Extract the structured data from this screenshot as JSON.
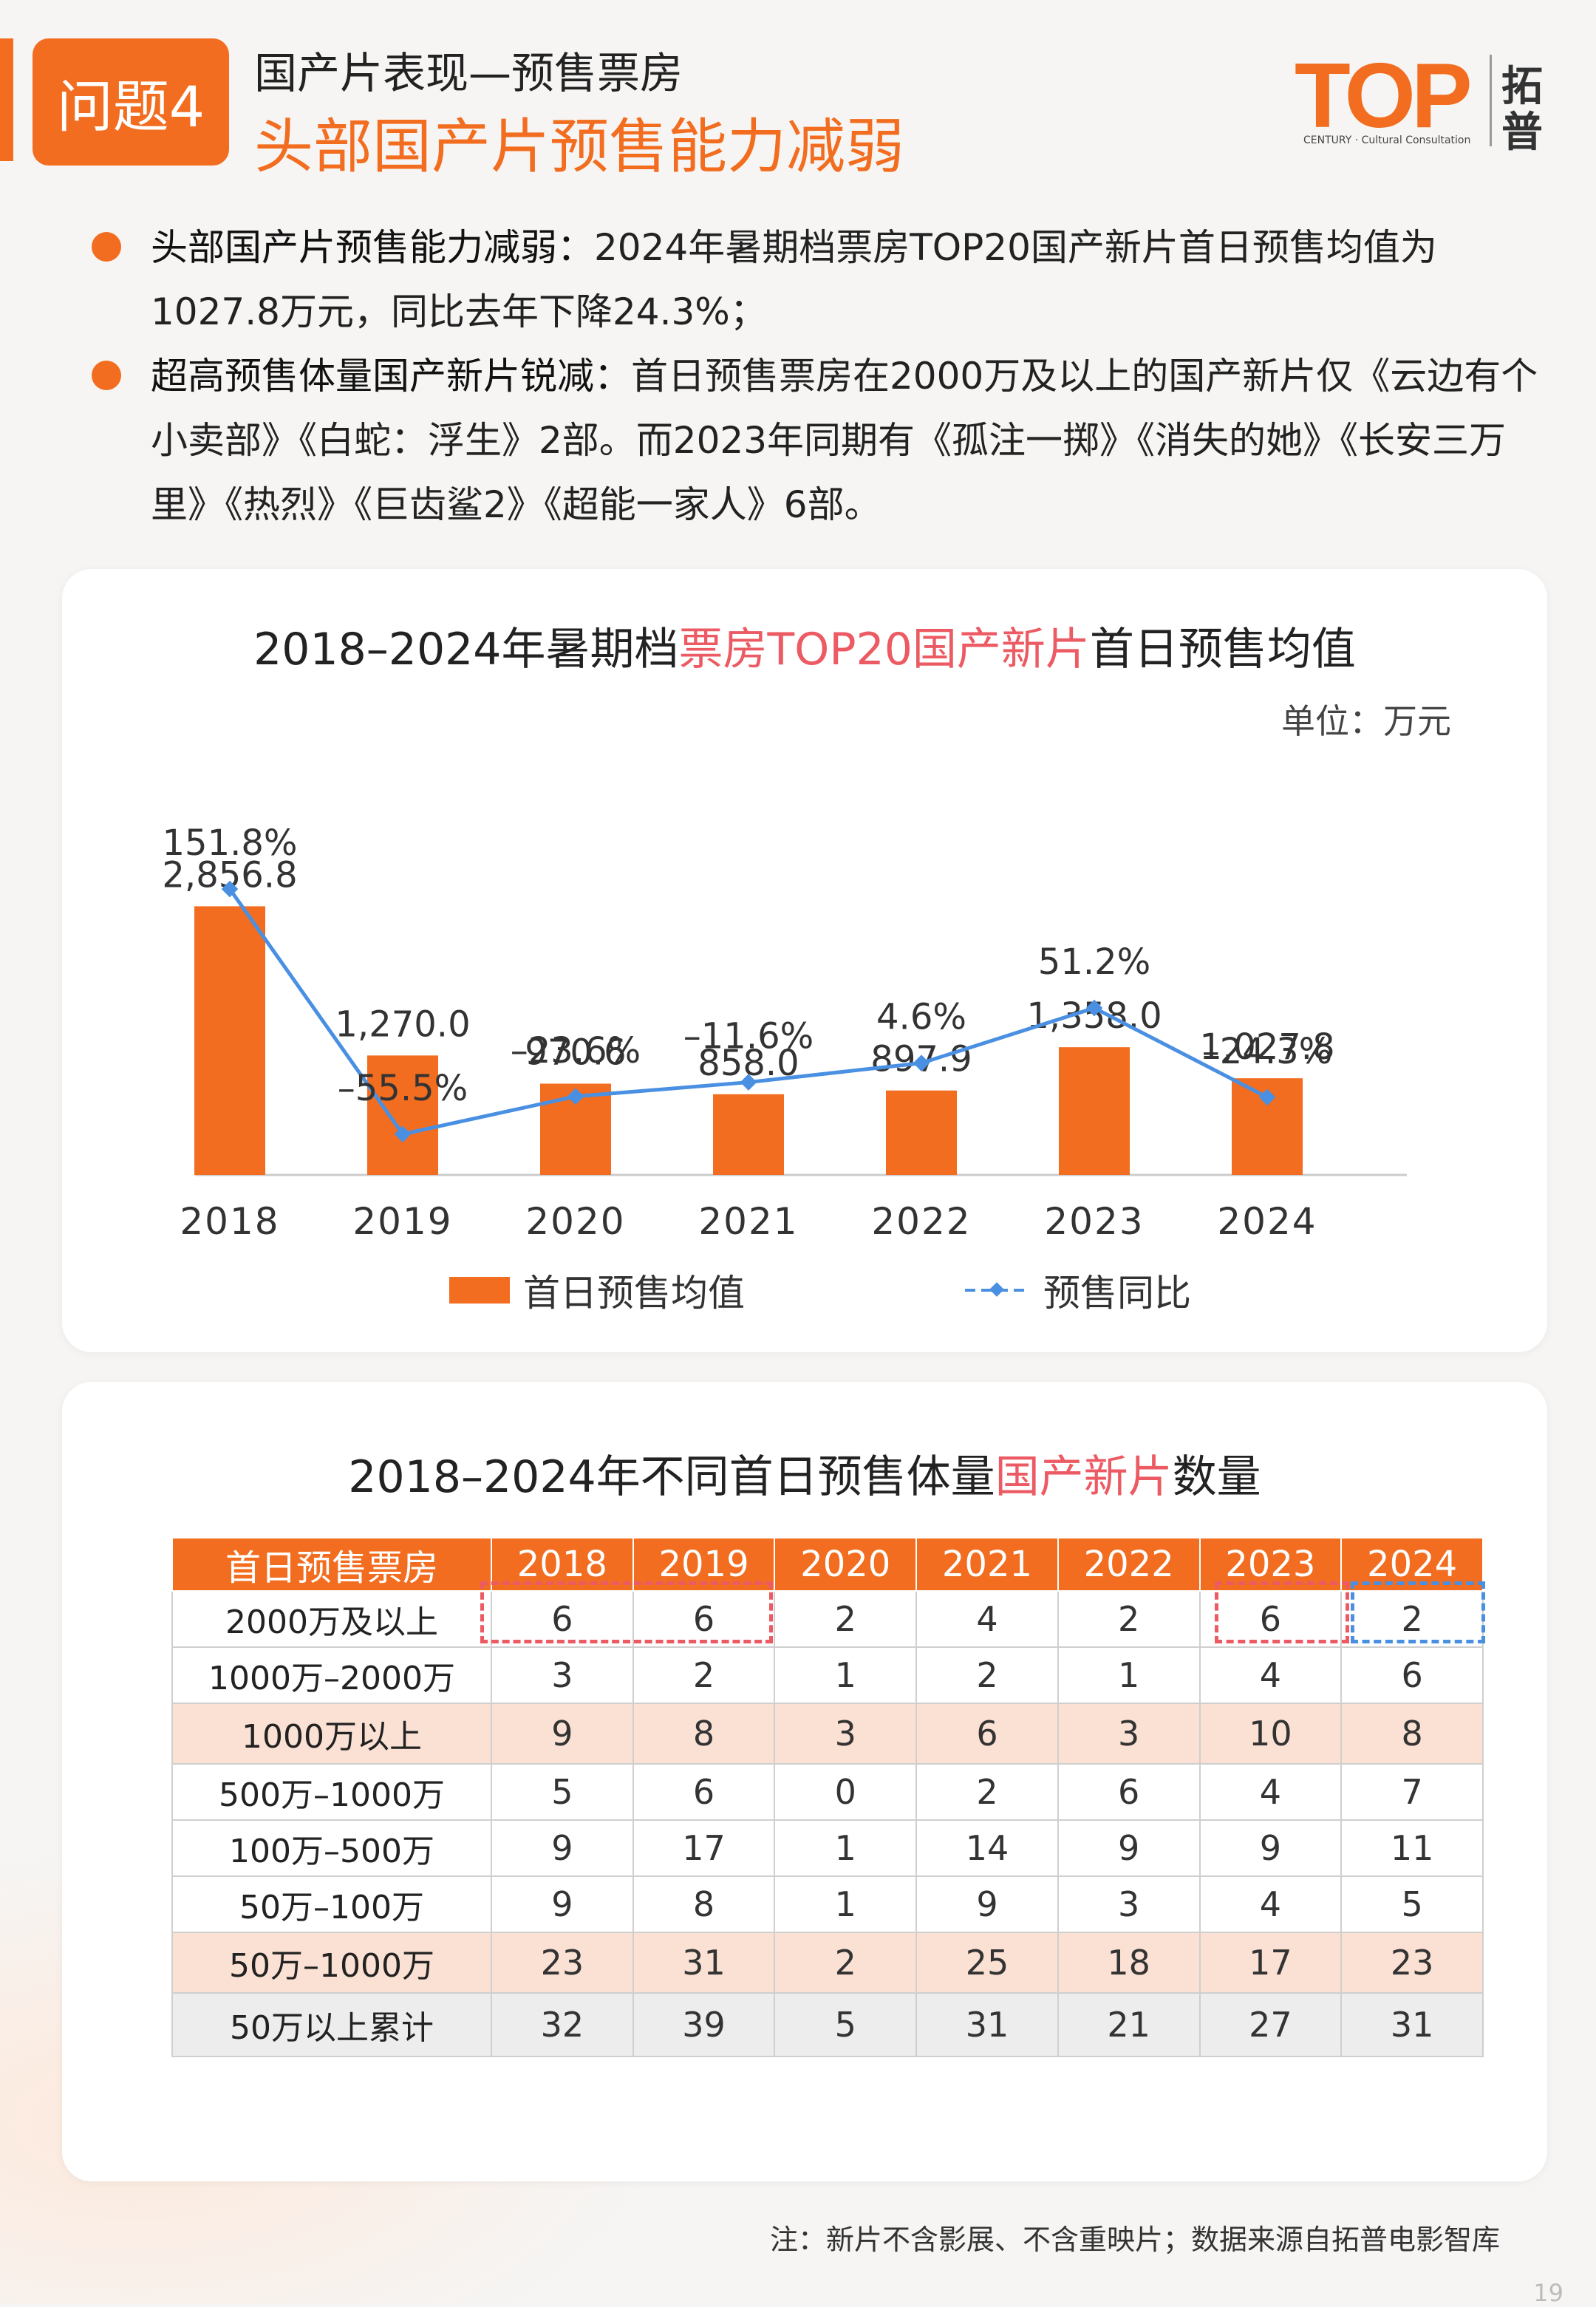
{
  "header": {
    "badge": "问题4",
    "subtitle": "国产片表现—预售票房",
    "title": "头部国产片预售能力减弱"
  },
  "logo": {
    "mark": "TOP",
    "small": "CENTURY · Cultural Consultation",
    "cn1": "拓",
    "cn2": "普"
  },
  "bullets": [
    {
      "lead": "头部国产片预售能力减弱：",
      "text": "2024年暑期档票房TOP20国产新片首日预售均值为1027.8万元，同比去年下降24.3%；"
    },
    {
      "lead": "超高预售体量国产新片锐减：",
      "text": "首日预售票房在2000万及以上的国产新片仅《云边有个小卖部》《白蛇：浮生》2部。而2023年同期有《孤注一掷》《消失的她》《长安三万里》《热烈》《巨齿鲨2》《超能一家人》6部。"
    }
  ],
  "chart1": {
    "title_pre": "2018–2024年暑期档",
    "title_hl": "票房TOP20国产新片",
    "title_post": "首日预售均值",
    "unit": "单位：万元",
    "legend_bar": "首日预售均值",
    "legend_line": "预售同比"
  },
  "chart_data": [
    {
      "type": "bar",
      "title": "2018–2024年暑期档票房TOP20国产新片首日预售均值",
      "categories": [
        "2018",
        "2019",
        "2020",
        "2021",
        "2022",
        "2023",
        "2024"
      ],
      "series": [
        {
          "name": "首日预售均值",
          "type": "bar",
          "values": [
            2856.8,
            1270.0,
            970.6,
            858.0,
            897.9,
            1358.0,
            1027.8
          ],
          "labels": [
            "2,856.8",
            "1,270.0",
            "970.6",
            "858.0",
            "897.9",
            "1,358.0",
            "1,027.8"
          ]
        },
        {
          "name": "预售同比",
          "type": "line",
          "values": [
            151.8,
            -55.5,
            -23.6,
            -11.6,
            4.6,
            51.2,
            -24.3
          ],
          "labels": [
            "151.8%",
            "–55.5%",
            "–23.6%",
            "–11.6%",
            "4.6%",
            "51.2%",
            "–24.3%"
          ]
        }
      ],
      "ylabel": "万元",
      "ylim": [
        0,
        4400
      ],
      "y2lim": [
        -90,
        260
      ],
      "grid": false,
      "legend": "bottom"
    },
    {
      "type": "table",
      "title": "2018–2024年不同首日预售体量国产新片数量",
      "columns": [
        "首日预售票房",
        "2018",
        "2019",
        "2020",
        "2021",
        "2022",
        "2023",
        "2024"
      ],
      "rows": [
        {
          "label": "2000万及以上",
          "values": [
            6,
            6,
            2,
            4,
            2,
            6,
            2
          ],
          "style": "normal"
        },
        {
          "label": "1000万–2000万",
          "values": [
            3,
            2,
            1,
            2,
            1,
            4,
            6
          ],
          "style": "normal"
        },
        {
          "label": "1000万以上",
          "values": [
            9,
            8,
            3,
            6,
            3,
            10,
            8
          ],
          "style": "sub"
        },
        {
          "label": "500万–1000万",
          "values": [
            5,
            6,
            0,
            2,
            6,
            4,
            7
          ],
          "style": "normal"
        },
        {
          "label": "100万–500万",
          "values": [
            9,
            17,
            1,
            14,
            9,
            9,
            11
          ],
          "style": "normal"
        },
        {
          "label": "50万–100万",
          "values": [
            9,
            8,
            1,
            9,
            3,
            4,
            5
          ],
          "style": "normal"
        },
        {
          "label": "50万–1000万",
          "values": [
            23,
            31,
            2,
            25,
            18,
            17,
            23
          ],
          "style": "sub"
        },
        {
          "label": "50万以上累计",
          "values": [
            32,
            39,
            5,
            31,
            21,
            27,
            31
          ],
          "style": "total"
        }
      ]
    }
  ],
  "table_title": {
    "pre": "2018–2024年不同首日预售体量",
    "hl": "国产新片",
    "post": "数量"
  },
  "colors": {
    "accent": "#f26d1f",
    "line": "#4a90e2",
    "highlight": "#ec5a63",
    "sub_row": "#fbe1d3"
  },
  "footer": {
    "note": "注：新片不含影展、不含重映片；数据来源自拓普电影智库",
    "page": "19"
  }
}
